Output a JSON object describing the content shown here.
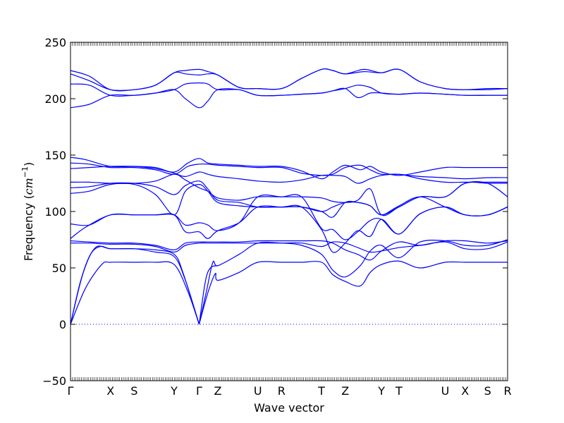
{
  "chart_data": {
    "type": "line",
    "xlabel": "Wave vector",
    "ylabel": "Frequency (cm⁻¹)",
    "ylabel_parts": {
      "main": "Frequency (",
      "unit_italic": "cm",
      "exp": "−1",
      "close": ")"
    },
    "ylim": [
      -50,
      250
    ],
    "yticks": [
      -50,
      0,
      50,
      100,
      150,
      200,
      250
    ],
    "xlim": [
      0,
      35
    ],
    "grid": false,
    "legend": "none",
    "line_color": "#0000ff",
    "zero_line_color": "#0000ff",
    "high_symmetry_points": [
      {
        "label": "Γ",
        "x": 0
      },
      {
        "label": "X",
        "x": 3.2
      },
      {
        "label": "S",
        "x": 5.1
      },
      {
        "label": "Y",
        "x": 8.3
      },
      {
        "label": "Γ",
        "x": 10.3
      },
      {
        "label": "Z",
        "x": 11.8
      },
      {
        "label": "U",
        "x": 15.0
      },
      {
        "label": "R",
        "x": 16.9
      },
      {
        "label": "T",
        "x": 20.1
      },
      {
        "label": "Z",
        "x": 22.0
      },
      {
        "label": "Y",
        "x": 24.9
      },
      {
        "label": "T",
        "x": 26.3
      },
      {
        "label": "U",
        "x": 30.0
      },
      {
        "label": "X",
        "x": 31.6
      },
      {
        "label": "S",
        "x": 33.4
      },
      {
        "label": "R",
        "x": 35.0
      }
    ],
    "series": [
      {
        "x": [
          0,
          1.5,
          3.2,
          5.1,
          6.8,
          8.3,
          9.2,
          10.3,
          11.0,
          11.8,
          13.5,
          15.0,
          16.9,
          18.5,
          20.1,
          21.0,
          22.0,
          23.5,
          24.9,
          26.3,
          28.0,
          30.0,
          31.6,
          33.4,
          35.0
        ],
        "y": [
          225,
          220,
          208,
          208,
          212,
          223,
          225,
          226,
          224,
          221,
          210,
          209,
          209,
          218,
          226,
          225,
          222,
          224,
          223,
          226,
          215,
          209,
          208,
          209,
          209
        ]
      },
      {
        "x": [
          0,
          1.5,
          3.2,
          5.1,
          6.8,
          8.3,
          9.2,
          10.3,
          11.0,
          11.8,
          13.5,
          15.0,
          16.9,
          18.5,
          20.1,
          21.0,
          22.0,
          23.5,
          24.9,
          26.3,
          28.0,
          30.0,
          31.6,
          33.4,
          35.0
        ],
        "y": [
          222,
          216,
          208,
          208,
          212,
          223,
          222,
          221,
          222,
          221,
          210,
          209,
          209,
          218,
          226,
          225,
          222,
          226,
          223,
          226,
          215,
          209,
          208,
          208,
          209
        ]
      },
      {
        "x": [
          0,
          1.5,
          3.2,
          5.1,
          6.8,
          8.3,
          9.2,
          10.3,
          11.0,
          11.8,
          13.5,
          15.0,
          16.9,
          18.5,
          20.1,
          21.0,
          22.0,
          23.0,
          24.0,
          24.9,
          26.3,
          28.0,
          30.0,
          31.6,
          33.4,
          35.0
        ],
        "y": [
          213,
          212,
          203,
          203,
          205,
          208,
          213,
          214,
          213,
          208,
          208,
          203,
          203,
          204,
          205,
          207,
          209,
          212,
          210,
          205,
          204,
          205,
          204,
          203,
          203,
          203
        ]
      },
      {
        "x": [
          0,
          1.5,
          3.2,
          5.1,
          6.8,
          8.3,
          9.2,
          10.3,
          11.0,
          11.8,
          13.5,
          15.0,
          16.9,
          18.5,
          20.1,
          21.0,
          22.0,
          23.0,
          24.0,
          24.9,
          26.3,
          28.0,
          30.0,
          31.6,
          33.4,
          35.0
        ],
        "y": [
          192,
          195,
          203,
          203,
          205,
          208,
          200,
          192,
          198,
          208,
          208,
          203,
          203,
          204,
          205,
          207,
          209,
          201,
          205,
          205,
          204,
          205,
          204,
          203,
          203,
          203
        ]
      },
      {
        "x": [
          0,
          1.2,
          3.2,
          5.1,
          6.8,
          8.3,
          9.4,
          10.3,
          11.0,
          11.8,
          13.5,
          15.0,
          16.9,
          18.5,
          20.1,
          21.0,
          22.0,
          23.2,
          24.0,
          24.9,
          26.3,
          28.0,
          30.0,
          31.6,
          33.4,
          35.0
        ],
        "y": [
          148,
          146,
          140,
          140,
          139,
          135,
          143,
          147,
          143,
          142,
          141,
          140,
          140,
          136,
          129,
          135,
          141,
          137,
          140,
          135,
          132,
          135,
          139,
          139,
          139,
          139
        ]
      },
      {
        "x": [
          0,
          1.5,
          3.2,
          5.1,
          6.8,
          8.3,
          9.4,
          10.3,
          11.0,
          11.8,
          13.5,
          15.0,
          16.9,
          18.5,
          20.1,
          21.0,
          22.0,
          23.2,
          24.0,
          24.9,
          26.3,
          28.0,
          30.0,
          31.6,
          33.4,
          35.0
        ],
        "y": [
          143,
          142,
          139,
          139,
          137,
          133,
          140,
          142,
          142,
          141,
          140,
          139,
          139,
          134,
          132,
          133,
          139,
          141,
          137,
          133,
          133,
          131,
          130,
          129,
          130,
          130
        ]
      },
      {
        "x": [
          0,
          1.5,
          3.2,
          5.1,
          6.8,
          8.3,
          9.2,
          10.3,
          11.0,
          11.8,
          13.5,
          15.0,
          16.9,
          18.5,
          20.1,
          21.0,
          22.0,
          23.0,
          24.0,
          24.9,
          26.3,
          28.0,
          30.0,
          31.6,
          33.4,
          35.0
        ],
        "y": [
          138,
          139,
          140,
          140,
          138,
          134,
          131,
          135,
          133,
          131,
          129,
          127,
          126,
          128,
          132,
          132,
          131,
          125,
          129,
          132,
          133,
          129,
          126,
          126,
          126,
          126
        ]
      },
      {
        "x": [
          0,
          1.5,
          3.2,
          5.1,
          6.8,
          8.3,
          9.2,
          10.3,
          11.0,
          11.8,
          13.5,
          15.0,
          16.9,
          18.5,
          20.1,
          21.0,
          22.0,
          23.0,
          24.0,
          24.9,
          26.3,
          28.0,
          30.0,
          31.6,
          33.4,
          35.0
        ],
        "y": [
          126,
          126,
          125,
          125,
          127,
          133,
          128,
          121,
          118,
          112,
          110,
          113,
          113,
          113,
          112,
          109,
          108,
          110,
          120,
          97,
          104,
          113,
          113,
          125,
          125,
          125
        ]
      },
      {
        "x": [
          0,
          1.5,
          3.2,
          5.1,
          6.8,
          8.3,
          9.2,
          10.3,
          11.0,
          11.8,
          13.5,
          15.0,
          16.9,
          18.5,
          20.1,
          21.0,
          22.0,
          23.0,
          24.0,
          24.9,
          26.3,
          28.0,
          30.0,
          31.6,
          33.4,
          35.0
        ],
        "y": [
          121,
          122,
          125,
          125,
          122,
          115,
          123,
          127,
          120,
          110,
          108,
          104,
          104,
          104,
          100,
          104,
          108,
          108,
          105,
          97,
          104,
          113,
          113,
          125,
          125,
          113
        ]
      },
      {
        "x": [
          0,
          1.5,
          3.2,
          5.1,
          6.8,
          8.3,
          9.2,
          10.3,
          11.0,
          11.8,
          13.5,
          15.0,
          16.9,
          18.5,
          20.1,
          21.0,
          22.0,
          23.0,
          24.0,
          24.9,
          26.3,
          28.0,
          30.0,
          31.6,
          33.4,
          35.0
        ],
        "y": [
          116,
          118,
          124,
          124,
          115,
          97,
          118,
          124,
          118,
          108,
          105,
          104,
          104,
          104,
          100,
          95,
          108,
          108,
          105,
          97,
          105,
          113,
          104,
          97,
          97,
          104
        ]
      },
      {
        "x": [
          0,
          1.5,
          3.2,
          5.1,
          6.8,
          8.3,
          9.2,
          10.3,
          11.0,
          11.8,
          13.5,
          15.0,
          16.9,
          18.5,
          20.1,
          21.0,
          22.0,
          23.0,
          24.0,
          24.9,
          26.3,
          28.0,
          30.0,
          31.6,
          33.4,
          35.0
        ],
        "y": [
          89,
          88,
          97,
          97,
          97,
          97,
          88,
          90,
          88,
          83,
          90,
          113,
          113,
          113,
          85,
          84,
          75,
          82,
          92,
          93,
          80,
          98,
          104,
          97,
          97,
          104
        ]
      },
      {
        "x": [
          0,
          1.2,
          3.2,
          5.1,
          6.8,
          8.3,
          9.2,
          10.3,
          11.0,
          11.8,
          13.5,
          15.0,
          16.9,
          18.5,
          20.1,
          21.0,
          22.0,
          23.0,
          24.0,
          24.9,
          26.3,
          28.0,
          30.0,
          31.6,
          33.4,
          35.0
        ],
        "y": [
          76,
          86,
          97,
          97,
          97,
          97,
          82,
          82,
          76,
          83,
          90,
          104,
          104,
          104,
          84,
          64,
          72,
          83,
          78,
          93,
          80,
          98,
          104,
          97,
          97,
          104
        ]
      },
      {
        "x": [
          0,
          1.5,
          3.2,
          5.1,
          6.8,
          8.3,
          9.2,
          10.3,
          11.0,
          11.8,
          13.5,
          15.0,
          16.9,
          18.5,
          20.1,
          21.0,
          22.0,
          23.0,
          24.0,
          24.9,
          26.3,
          28.0,
          30.0,
          31.6,
          33.4,
          35.0
        ],
        "y": [
          74,
          73,
          72,
          72,
          70,
          66,
          72,
          73,
          73,
          73,
          73,
          74,
          74,
          74,
          74,
          72,
          66,
          62,
          57,
          65,
          73,
          70,
          74,
          74,
          72,
          74
        ]
      },
      {
        "x": [
          0,
          1.5,
          3.2,
          5.1,
          6.8,
          8.3,
          9.2,
          10.3,
          11.0,
          11.8,
          13.5,
          15.0,
          16.9,
          18.5,
          20.1,
          21.0,
          22.0,
          23.0,
          24.0,
          24.9,
          26.3,
          28.0,
          30.0,
          31.6,
          33.4,
          35.0
        ],
        "y": [
          72,
          72,
          71,
          71,
          69,
          64,
          70,
          72,
          72,
          72,
          72,
          72,
          72,
          72,
          69,
          73,
          72,
          68,
          64,
          65,
          68,
          70,
          73,
          67,
          67,
          73
        ]
      },
      {
        "x": [
          0,
          1.0,
          2.0,
          3.2,
          5.1,
          6.8,
          8.3,
          9.0,
          10.3
        ],
        "y": [
          0,
          45,
          68,
          67,
          67,
          66,
          62,
          46,
          0
        ]
      },
      {
        "x": [
          0,
          0.8,
          1.6,
          2.4,
          3.2,
          5.1,
          6.8,
          8.3,
          9.2,
          10.3
        ],
        "y": [
          0,
          38,
          62,
          69,
          67,
          67,
          64,
          60,
          39,
          0
        ]
      },
      {
        "x": [
          0,
          1.2,
          2.5,
          3.2,
          5.1,
          6.8,
          8.3,
          9.4,
          10.3
        ],
        "y": [
          0,
          32,
          53,
          55,
          55,
          55,
          53,
          29,
          0
        ]
      },
      {
        "x": [
          10.3,
          10.9,
          11.4,
          11.8,
          13.5,
          15.0,
          16.9,
          18.5,
          20.1,
          21.0,
          22.0,
          23.2,
          24.0,
          24.9,
          26.3,
          28.0,
          30.0,
          31.6,
          33.4,
          35.0
        ],
        "y": [
          0,
          30,
          55,
          52,
          62,
          72,
          72,
          70,
          62,
          48,
          42,
          52,
          65,
          70,
          59,
          73,
          74,
          70,
          70,
          75
        ]
      },
      {
        "x": [
          10.3,
          11.0,
          11.6,
          11.8,
          13.5,
          15.0,
          16.9,
          18.5,
          20.1,
          21.0,
          22.0,
          23.2,
          24.0,
          24.9,
          26.3,
          28.0,
          30.0,
          31.6,
          33.4,
          35.0
        ],
        "y": [
          0,
          28,
          45,
          39,
          46,
          55,
          55,
          55,
          55,
          44,
          38,
          34,
          46,
          53,
          56,
          50,
          55,
          55,
          55,
          55
        ]
      },
      {
        "x": [
          10.3,
          10.8,
          11.2,
          11.8
        ],
        "y": [
          0,
          38,
          50,
          52
        ]
      }
    ]
  }
}
